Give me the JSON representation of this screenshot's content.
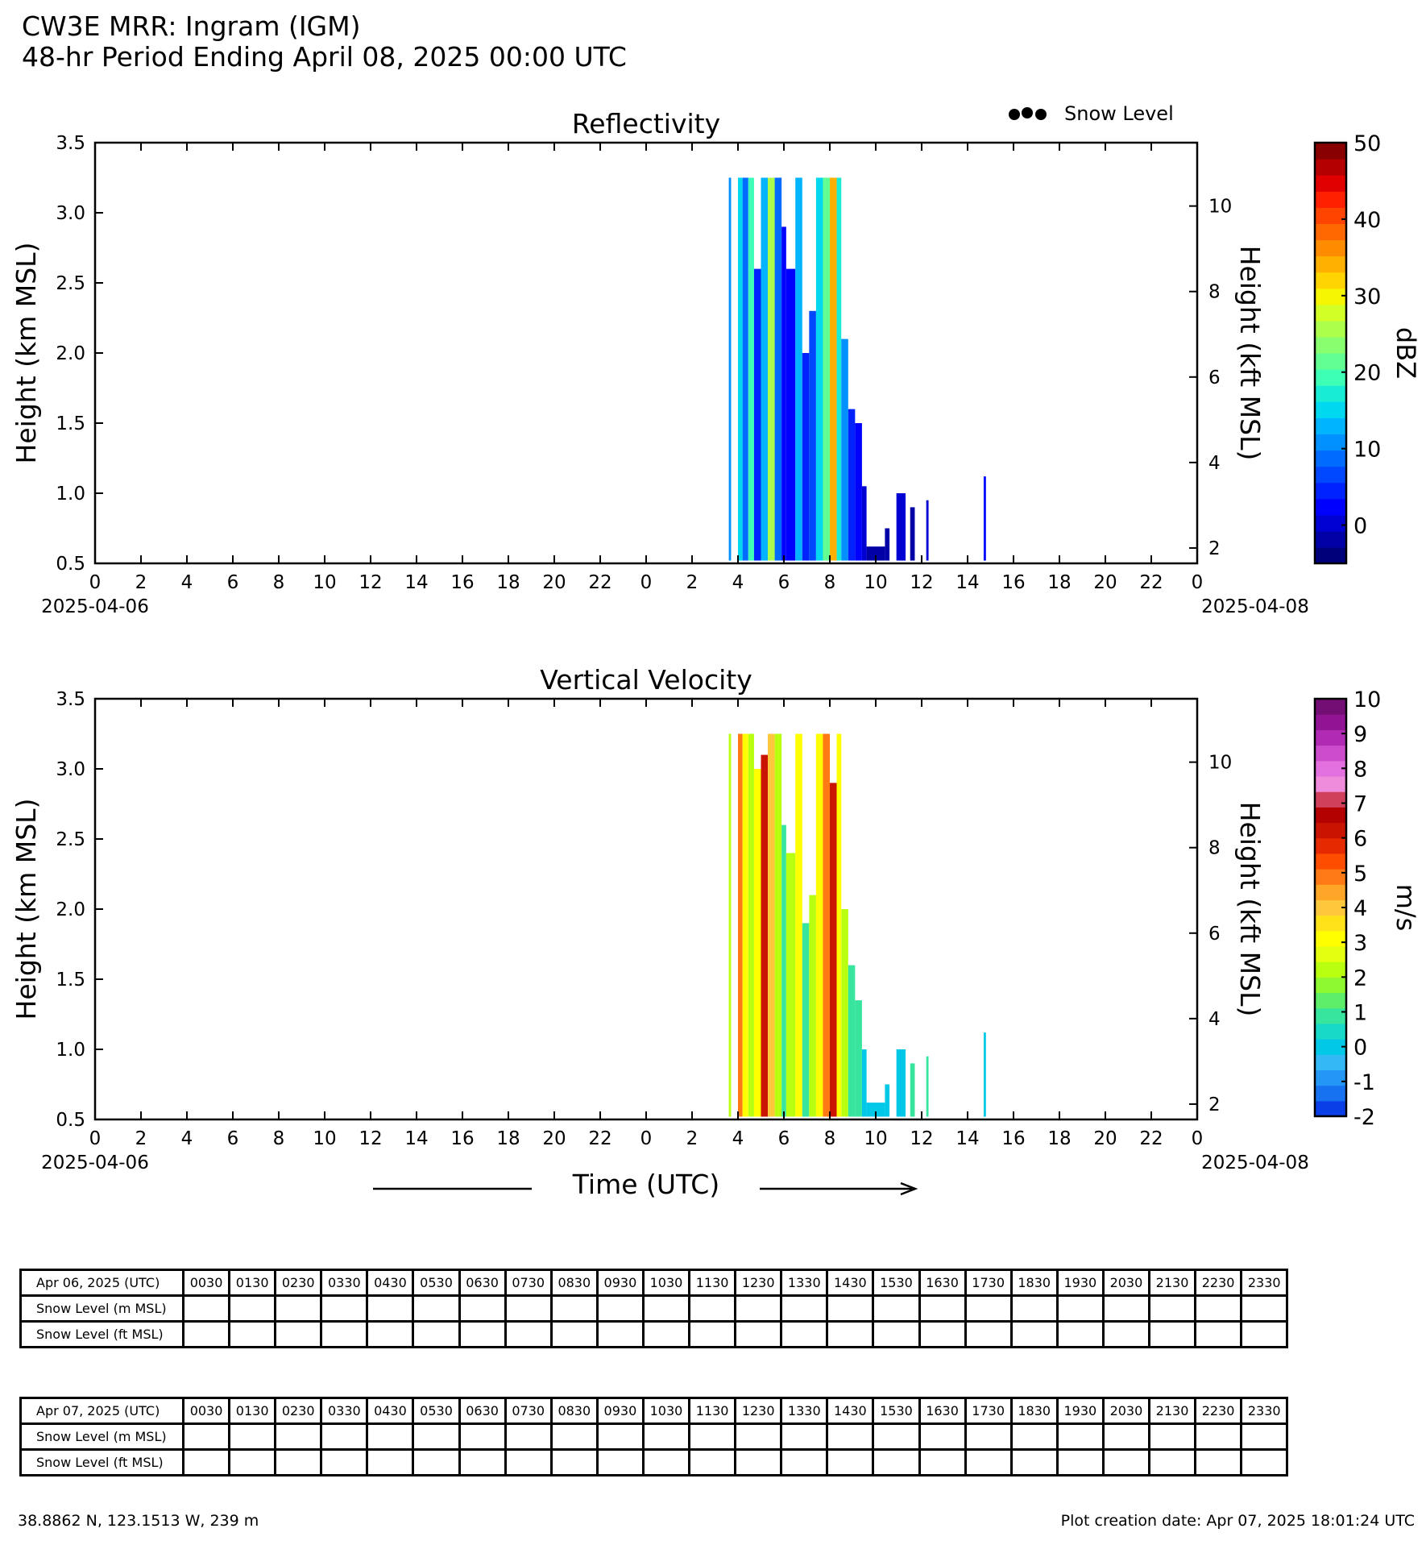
{
  "header": {
    "title": "CW3E MRR: Ingram (IGM)",
    "subtitle": "48-hr Period Ending April 08, 2025 00:00 UTC"
  },
  "legend": {
    "snow_level": "Snow Level"
  },
  "time_label": "Time (UTC)",
  "footer": {
    "location": "38.8862 N, 123.1513 W, 239 m",
    "creation": "Plot creation date: Apr 07, 2025 18:01:24 UTC"
  },
  "colors": {
    "reflectivity_scale": [
      "#00007a",
      "#0000a6",
      "#0000d3",
      "#0000ff",
      "#0022ff",
      "#0048ff",
      "#006cff",
      "#0090ff",
      "#00b4ff",
      "#00d8f0",
      "#18ecd4",
      "#3effb6",
      "#62ff92",
      "#88ff6e",
      "#acff4a",
      "#d2ff26",
      "#f6f600",
      "#ffd400",
      "#ffb000",
      "#ff8c00",
      "#ff6800",
      "#ff4400",
      "#ff2000",
      "#e00000",
      "#b40000",
      "#880000"
    ],
    "velocity_scale": [
      "#0a3ee6",
      "#1672f0",
      "#2496f5",
      "#35b8f6",
      "#00c8e6",
      "#18d8c8",
      "#37e59e",
      "#5eee6a",
      "#8ef830",
      "#b8ff10",
      "#e4ff10",
      "#ffff00",
      "#ffe21a",
      "#ffc83c",
      "#ffa628",
      "#ff7a14",
      "#ff4d00",
      "#e62a00",
      "#c81400",
      "#b30000",
      "#d0405a",
      "#f08cdc",
      "#e270de",
      "#cc4ccc",
      "#b02ab4",
      "#901493",
      "#720e74"
    ]
  },
  "charts": [
    {
      "type": "heatmap",
      "title": "Reflectivity",
      "ylabel": "Height (km MSL)",
      "ylabel_right": "Height (kft MSL)",
      "colorbar_label": "dBZ",
      "colorbar_ticks": [
        "50",
        "40",
        "30",
        "20",
        "10",
        "0"
      ],
      "colorbar_range": [
        -5,
        50
      ],
      "ylim": [
        0.5,
        3.5
      ],
      "yticks": [
        "0.5",
        "1.0",
        "1.5",
        "2.0",
        "2.5",
        "3.0",
        "3.5"
      ],
      "yticks_right": [
        "2",
        "4",
        "6",
        "8",
        "10"
      ],
      "xticks": [
        "0",
        "2",
        "4",
        "6",
        "8",
        "10",
        "12",
        "14",
        "16",
        "18",
        "20",
        "22",
        "0",
        "2",
        "4",
        "6",
        "8",
        "10",
        "12",
        "14",
        "16",
        "18",
        "20",
        "22",
        "0"
      ],
      "date_labels": [
        "2025-04-06",
        "2025-04-08"
      ]
    },
    {
      "type": "heatmap",
      "title": "Vertical Velocity",
      "ylabel": "Height (km MSL)",
      "ylabel_right": "Height (kft MSL)",
      "colorbar_label": "m/s",
      "colorbar_ticks": [
        "10",
        "9",
        "8",
        "7",
        "6",
        "5",
        "4",
        "3",
        "2",
        "1",
        "0",
        "-1",
        "-2"
      ],
      "colorbar_range": [
        -2,
        10
      ],
      "ylim": [
        0.5,
        3.5
      ],
      "yticks": [
        "0.5",
        "1.0",
        "1.5",
        "2.0",
        "2.5",
        "3.0",
        "3.5"
      ],
      "yticks_right": [
        "2",
        "4",
        "6",
        "8",
        "10"
      ],
      "xticks": [
        "0",
        "2",
        "4",
        "6",
        "8",
        "10",
        "12",
        "14",
        "16",
        "18",
        "20",
        "22",
        "0",
        "2",
        "4",
        "6",
        "8",
        "10",
        "12",
        "14",
        "16",
        "18",
        "20",
        "22",
        "0"
      ],
      "date_labels": [
        "2025-04-06",
        "2025-04-08"
      ]
    }
  ],
  "chart_data": [
    {
      "type": "heatmap",
      "title": "Reflectivity",
      "x_unit": "hours since 2025-04-06 00:00 UTC",
      "xlim": [
        0,
        48
      ],
      "ylim": [
        0.5,
        3.5
      ],
      "columns": [
        {
          "t0": 27.6,
          "t1": 27.7,
          "top": 3.25,
          "dbz": 10
        },
        {
          "t0": 28.0,
          "t1": 28.2,
          "top": 3.25,
          "dbz": 15
        },
        {
          "t0": 28.2,
          "t1": 28.45,
          "top": 3.25,
          "dbz": 8
        },
        {
          "t0": 28.45,
          "t1": 28.7,
          "top": 3.25,
          "dbz": 20
        },
        {
          "t0": 28.7,
          "t1": 29.0,
          "top": 2.6,
          "dbz": 4
        },
        {
          "t0": 29.0,
          "t1": 29.3,
          "top": 3.25,
          "dbz": 14
        },
        {
          "t0": 29.3,
          "t1": 29.6,
          "top": 3.25,
          "dbz": 25
        },
        {
          "t0": 29.6,
          "t1": 29.9,
          "top": 3.25,
          "dbz": 8
        },
        {
          "t0": 29.9,
          "t1": 30.1,
          "top": 2.9,
          "dbz": 3
        },
        {
          "t0": 30.1,
          "t1": 30.5,
          "top": 2.6,
          "dbz": 2
        },
        {
          "t0": 30.5,
          "t1": 30.8,
          "top": 3.25,
          "dbz": 12
        },
        {
          "t0": 30.8,
          "t1": 31.1,
          "top": 2.0,
          "dbz": 5
        },
        {
          "t0": 31.1,
          "t1": 31.4,
          "top": 2.3,
          "dbz": 6
        },
        {
          "t0": 31.4,
          "t1": 31.7,
          "top": 3.25,
          "dbz": 16
        },
        {
          "t0": 31.7,
          "t1": 32.0,
          "top": 3.25,
          "dbz": 22
        },
        {
          "t0": 32.0,
          "t1": 32.3,
          "top": 3.25,
          "dbz": 35
        },
        {
          "t0": 32.3,
          "t1": 32.5,
          "top": 3.25,
          "dbz": 18
        },
        {
          "t0": 32.5,
          "t1": 32.8,
          "top": 2.1,
          "dbz": 10
        },
        {
          "t0": 32.8,
          "t1": 33.1,
          "top": 1.6,
          "dbz": 4
        },
        {
          "t0": 33.1,
          "t1": 33.4,
          "top": 1.5,
          "dbz": 2
        },
        {
          "t0": 33.4,
          "t1": 33.6,
          "top": 1.05,
          "dbz": 0
        },
        {
          "t0": 33.6,
          "t1": 34.4,
          "top": 0.62,
          "dbz": -2
        },
        {
          "t0": 34.4,
          "t1": 34.6,
          "top": 0.75,
          "dbz": -1
        },
        {
          "t0": 34.9,
          "t1": 35.3,
          "top": 1.0,
          "dbz": 0
        },
        {
          "t0": 35.5,
          "t1": 35.7,
          "top": 0.9,
          "dbz": -1
        },
        {
          "t0": 36.2,
          "t1": 36.3,
          "top": 0.95,
          "dbz": 0
        },
        {
          "t0": 38.7,
          "t1": 38.8,
          "top": 1.12,
          "dbz": 2
        }
      ]
    },
    {
      "type": "heatmap",
      "title": "Vertical Velocity",
      "x_unit": "hours since 2025-04-06 00:00 UTC",
      "xlim": [
        0,
        48
      ],
      "ylim": [
        0.5,
        3.5
      ],
      "columns": [
        {
          "t0": 27.6,
          "t1": 27.7,
          "top": 3.25,
          "w": 2
        },
        {
          "t0": 28.0,
          "t1": 28.2,
          "top": 3.25,
          "w": 5
        },
        {
          "t0": 28.2,
          "t1": 28.45,
          "top": 3.25,
          "w": 3
        },
        {
          "t0": 28.45,
          "t1": 28.7,
          "top": 3.25,
          "w": 2
        },
        {
          "t0": 28.7,
          "t1": 29.0,
          "top": 3.0,
          "w": 3
        },
        {
          "t0": 29.0,
          "t1": 29.3,
          "top": 3.1,
          "w": 6
        },
        {
          "t0": 29.3,
          "t1": 29.6,
          "top": 3.25,
          "w": 4
        },
        {
          "t0": 29.6,
          "t1": 29.9,
          "top": 3.25,
          "w": 2
        },
        {
          "t0": 29.9,
          "t1": 30.1,
          "top": 2.6,
          "w": 1
        },
        {
          "t0": 30.1,
          "t1": 30.5,
          "top": 2.4,
          "w": 2
        },
        {
          "t0": 30.5,
          "t1": 30.8,
          "top": 3.25,
          "w": 3
        },
        {
          "t0": 30.8,
          "t1": 31.1,
          "top": 1.9,
          "w": 1
        },
        {
          "t0": 31.1,
          "t1": 31.4,
          "top": 2.1,
          "w": 2
        },
        {
          "t0": 31.4,
          "t1": 31.7,
          "top": 3.25,
          "w": 3
        },
        {
          "t0": 31.7,
          "t1": 32.0,
          "top": 3.25,
          "w": 5
        },
        {
          "t0": 32.0,
          "t1": 32.3,
          "top": 2.9,
          "w": 6
        },
        {
          "t0": 32.3,
          "t1": 32.5,
          "top": 3.25,
          "w": 3
        },
        {
          "t0": 32.5,
          "t1": 32.8,
          "top": 2.0,
          "w": 2
        },
        {
          "t0": 32.8,
          "t1": 33.1,
          "top": 1.6,
          "w": 1
        },
        {
          "t0": 33.1,
          "t1": 33.4,
          "top": 1.35,
          "w": 1
        },
        {
          "t0": 33.4,
          "t1": 33.6,
          "top": 1.0,
          "w": 0
        },
        {
          "t0": 33.6,
          "t1": 34.4,
          "top": 0.62,
          "w": 0
        },
        {
          "t0": 34.4,
          "t1": 34.6,
          "top": 0.75,
          "w": 0
        },
        {
          "t0": 34.9,
          "t1": 35.3,
          "top": 1.0,
          "w": 0
        },
        {
          "t0": 35.5,
          "t1": 35.7,
          "top": 0.9,
          "w": 1
        },
        {
          "t0": 36.2,
          "t1": 36.3,
          "top": 0.95,
          "w": 1
        },
        {
          "t0": 38.7,
          "t1": 38.8,
          "top": 1.12,
          "w": 0
        }
      ]
    }
  ],
  "tables": [
    {
      "rows": [
        [
          "Apr 06, 2025 (UTC)",
          "0030",
          "0130",
          "0230",
          "0330",
          "0430",
          "0530",
          "0630",
          "0730",
          "0830",
          "0930",
          "1030",
          "1130",
          "1230",
          "1330",
          "1430",
          "1530",
          "1630",
          "1730",
          "1830",
          "1930",
          "2030",
          "2130",
          "2230",
          "2330"
        ],
        [
          "Snow Level (m MSL)",
          "",
          "",
          "",
          "",
          "",
          "",
          "",
          "",
          "",
          "",
          "",
          "",
          "",
          "",
          "",
          "",
          "",
          "",
          "",
          "",
          "",
          "",
          "",
          ""
        ],
        [
          "Snow Level (ft MSL)",
          "",
          "",
          "",
          "",
          "",
          "",
          "",
          "",
          "",
          "",
          "",
          "",
          "",
          "",
          "",
          "",
          "",
          "",
          "",
          "",
          "",
          "",
          "",
          ""
        ]
      ]
    },
    {
      "rows": [
        [
          "Apr 07, 2025 (UTC)",
          "0030",
          "0130",
          "0230",
          "0330",
          "0430",
          "0530",
          "0630",
          "0730",
          "0830",
          "0930",
          "1030",
          "1130",
          "1230",
          "1330",
          "1430",
          "1530",
          "1630",
          "1730",
          "1830",
          "1930",
          "2030",
          "2130",
          "2230",
          "2330"
        ],
        [
          "Snow Level (m MSL)",
          "",
          "",
          "",
          "",
          "",
          "",
          "",
          "",
          "",
          "",
          "",
          "",
          "",
          "",
          "",
          "",
          "",
          "",
          "",
          "",
          "",
          "",
          "",
          ""
        ],
        [
          "Snow Level (ft MSL)",
          "",
          "",
          "",
          "",
          "",
          "",
          "",
          "",
          "",
          "",
          "",
          "",
          "",
          "",
          "",
          "",
          "",
          "",
          "",
          "",
          "",
          "",
          "",
          ""
        ]
      ]
    }
  ]
}
